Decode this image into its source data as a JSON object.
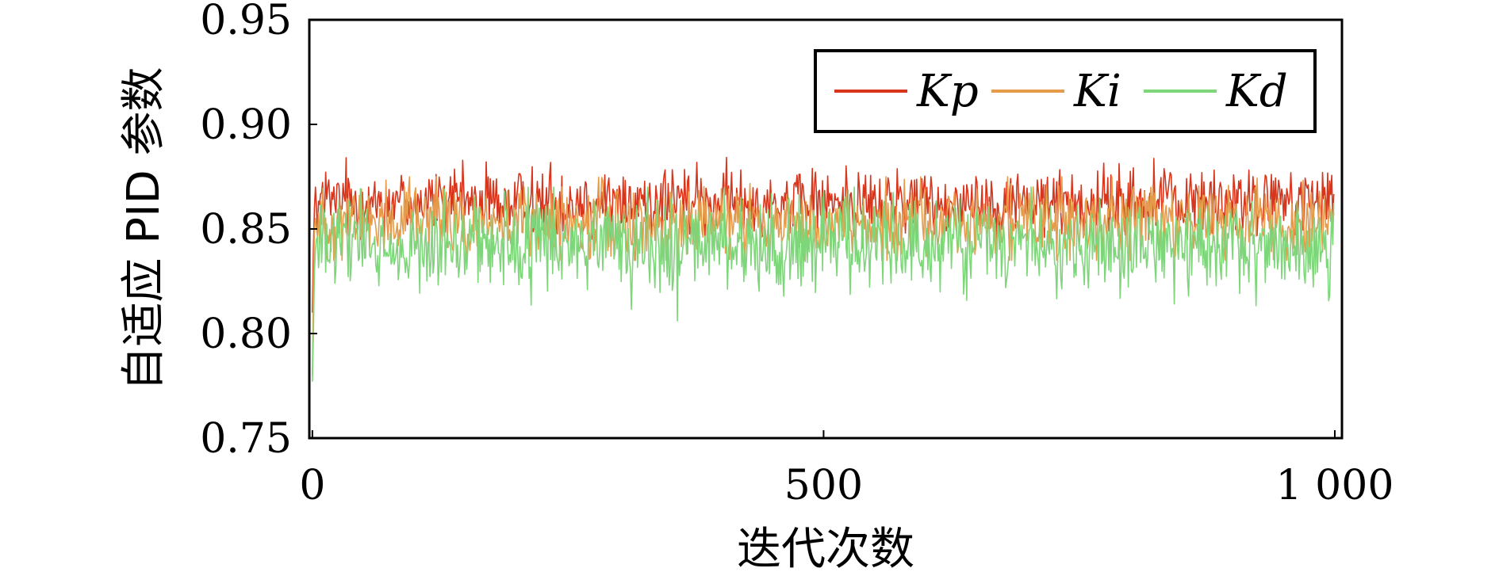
{
  "chart_data": {
    "type": "line",
    "title": "",
    "xlabel": "迭代次数",
    "ylabel": "自适应 PID 参数",
    "xlim": [
      0,
      1000
    ],
    "ylim": [
      0.75,
      0.95
    ],
    "xticks": [
      0,
      500,
      1000
    ],
    "xtick_labels": [
      "0",
      "500",
      "1 000"
    ],
    "yticks": [
      0.75,
      0.8,
      0.85,
      0.9,
      0.95
    ],
    "ytick_labels": [
      "0.75",
      "0.80",
      "0.85",
      "0.90",
      "0.95"
    ],
    "grid": false,
    "legend_position": "top-right",
    "series": [
      {
        "name": "Kp",
        "color": "#d7361c",
        "start_values": [
          0.81,
          0.84,
          0.86,
          0.87,
          0.86
        ],
        "mean": 0.863,
        "spread": 0.008,
        "min": 0.845,
        "max": 0.89
      },
      {
        "name": "Ki",
        "color": "#e59b4a",
        "start_values": [
          0.78,
          0.82,
          0.85,
          0.855,
          0.85
        ],
        "mean": 0.853,
        "spread": 0.009,
        "min": 0.835,
        "max": 0.875
      },
      {
        "name": "Kd",
        "color": "#7ed67a",
        "start_values": [
          0.777,
          0.8,
          0.83,
          0.84,
          0.845
        ],
        "mean": 0.842,
        "spread": 0.011,
        "min": 0.8,
        "max": 0.87
      }
    ],
    "n_points": 1000
  }
}
